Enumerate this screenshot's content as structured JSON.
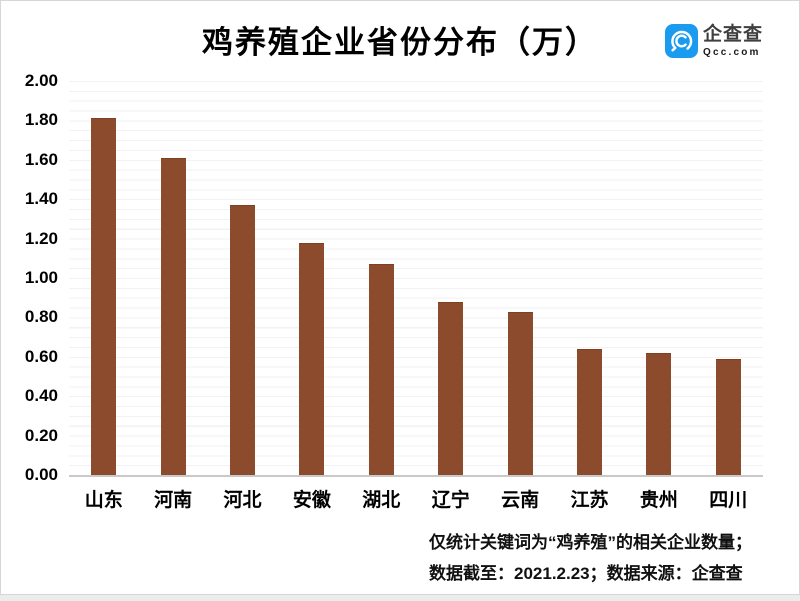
{
  "title": "鸡养殖企业省份分布（万）",
  "logo": {
    "name": "企查查",
    "domain": "Qcc.com",
    "icon": "qcc-magnifier-c-icon",
    "brand_color": "#1b9bf0"
  },
  "footnote": {
    "line1": "仅统计关键词为“鸡养殖”的相关企业数量；",
    "line2": "数据截至：2021.2.23；数据来源：企查查"
  },
  "chart_data": {
    "type": "bar",
    "title": "鸡养殖企业省份分布（万）",
    "unit": "万",
    "categories": [
      "山东",
      "河南",
      "河北",
      "安徽",
      "湖北",
      "辽宁",
      "云南",
      "江苏",
      "贵州",
      "四川"
    ],
    "values": [
      1.81,
      1.61,
      1.37,
      1.18,
      1.07,
      0.88,
      0.83,
      0.64,
      0.62,
      0.59
    ],
    "ylim": [
      0,
      2.0
    ],
    "ytick_labels": [
      "2.00",
      "1.80",
      "1.60",
      "1.40",
      "1.20",
      "1.00",
      "0.80",
      "0.60",
      "0.40",
      "0.20",
      "0.00"
    ],
    "minor_grid_step": 0.05,
    "grid": true,
    "legend": false,
    "bar_color": "#8c4b2d",
    "grid_color": "#f2f2f2",
    "axis_color": "#c9c9c9",
    "xlabel": "",
    "ylabel": ""
  }
}
